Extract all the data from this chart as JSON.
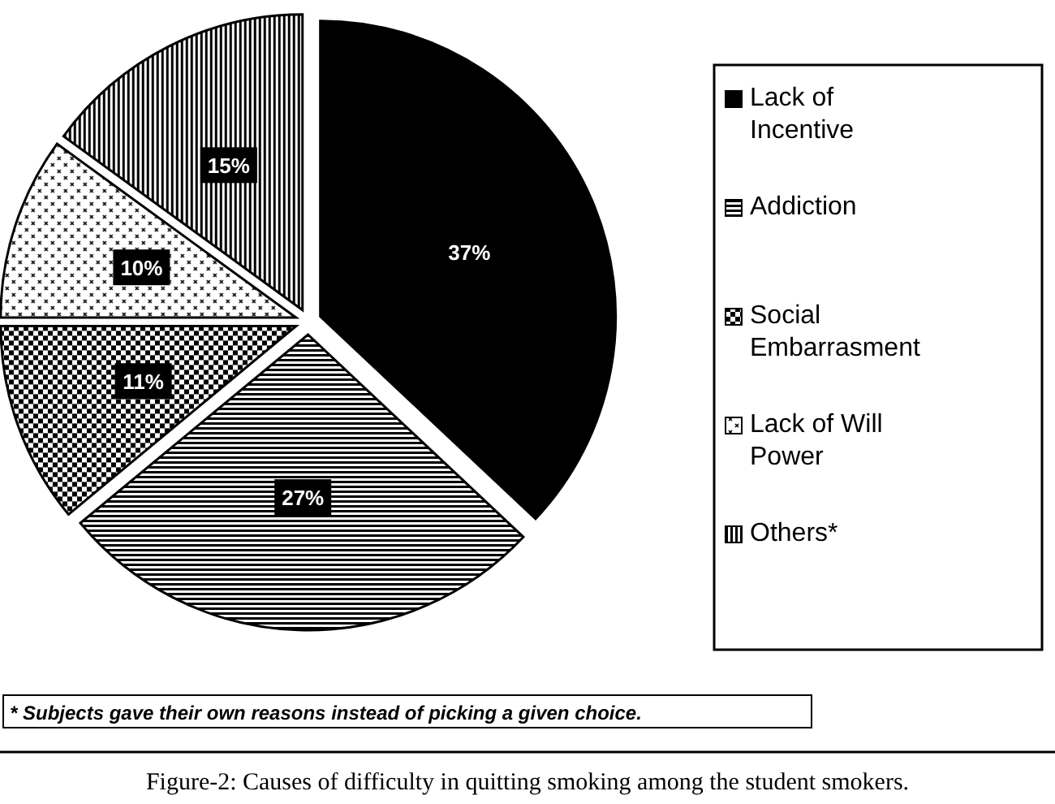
{
  "chart_data": {
    "type": "pie",
    "title": "Figure-2: Causes of difficulty in quitting smoking among the student smokers.",
    "categories": [
      "Lack of Incentive",
      "Addiction",
      "Social Embarrasment",
      "Lack of Will Power",
      "Others*"
    ],
    "values": [
      37,
      27,
      11,
      10,
      15
    ],
    "colors": [
      "#000000",
      "#000000",
      "#000000",
      "#000000",
      "#000000"
    ],
    "value_labels": [
      "37%",
      "27%",
      "11%",
      "10%",
      "15%"
    ],
    "legend": "right",
    "annotations": [
      "* Subjects gave their own reasons instead of picking a given choice."
    ]
  }
}
